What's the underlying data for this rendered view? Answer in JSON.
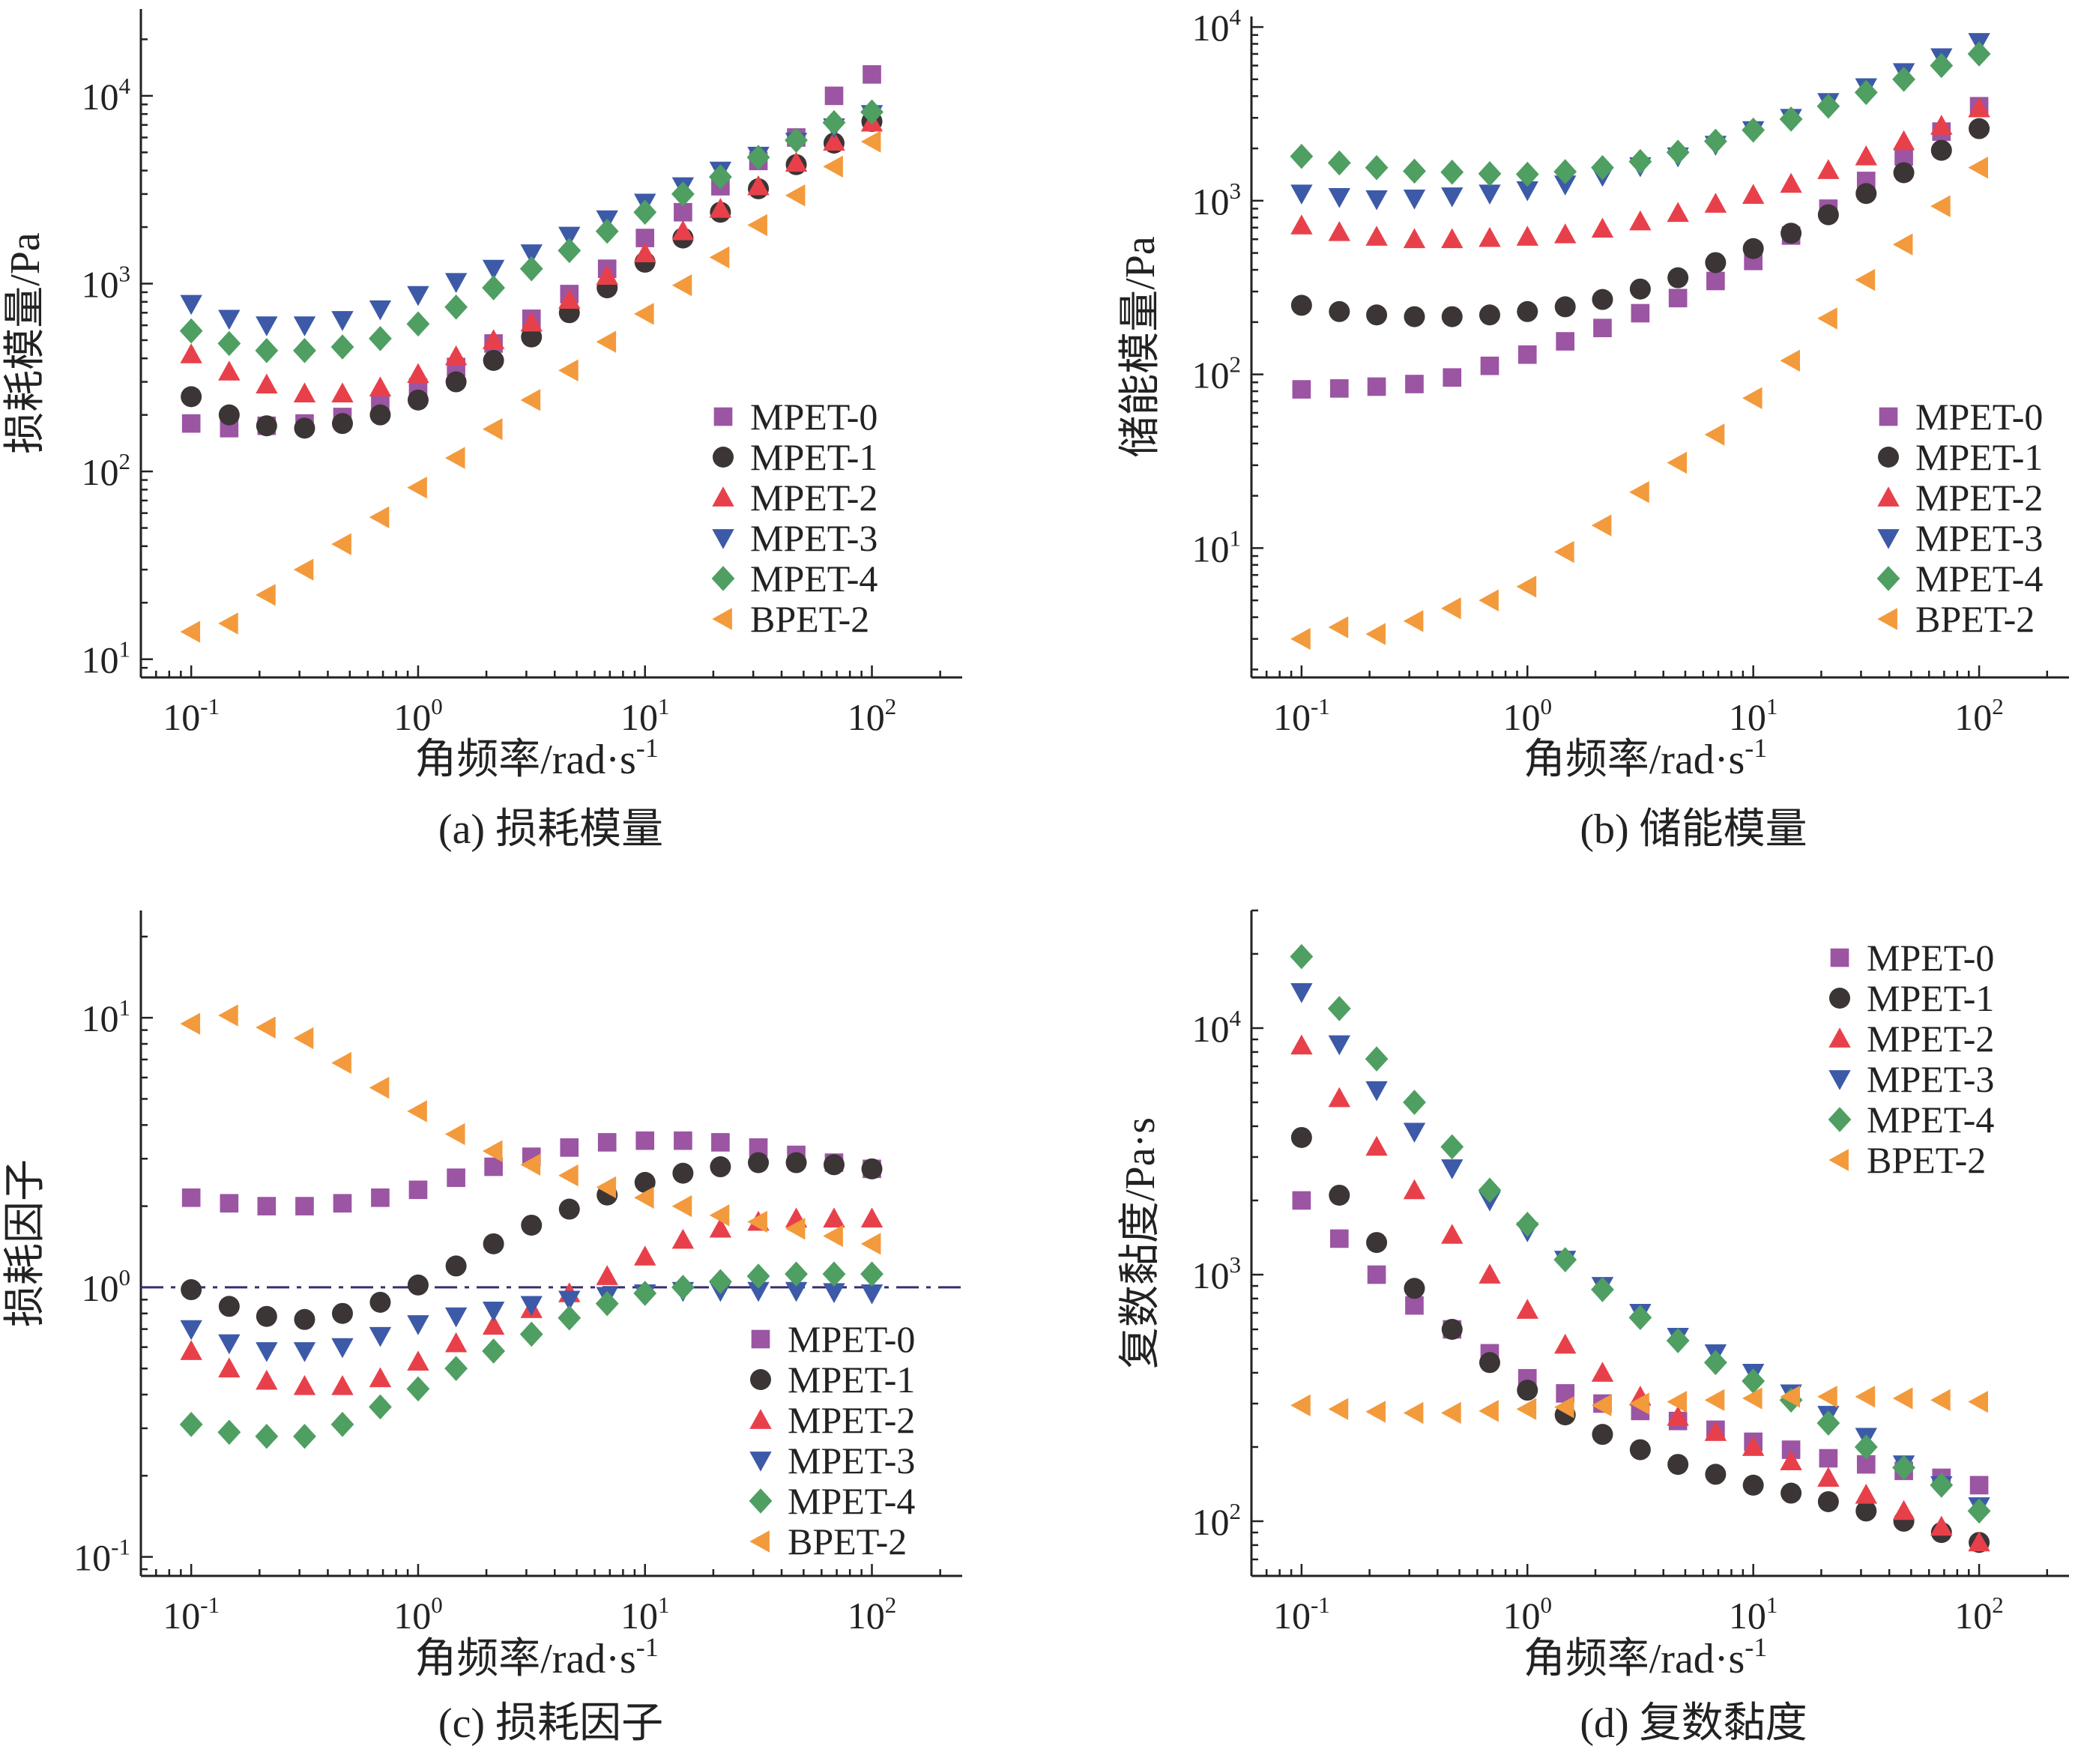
{
  "colors": {
    "MPET-0": "#9b55a3",
    "MPET-1": "#3b3535",
    "MPET-2": "#e8404a",
    "MPET-3": "#3d5aa8",
    "MPET-4": "#4f9e62",
    "BPET-2": "#f39a3c",
    "axis": "#222222",
    "refline": "#3a2d6e"
  },
  "marker_shapes": {
    "MPET-0": "square",
    "MPET-1": "circle",
    "MPET-2": "triangle-up",
    "MPET-3": "triangle-down",
    "MPET-4": "diamond",
    "BPET-2": "triangle-left"
  },
  "chart_data": [
    {
      "type": "scatter",
      "caption": "(a) 损耗模量",
      "xlabel": "角频率/rad·s",
      "xlabel_sup": "-1",
      "ylabel": "损耗模量/Pa",
      "xscale": "log",
      "yscale": "log",
      "xlim": [
        0.06,
        250
      ],
      "ylim": [
        8,
        29000
      ],
      "xticks": [
        0.1,
        1,
        10,
        100
      ],
      "xtick_labels": [
        {
          "base": "10",
          "exp": "-1"
        },
        {
          "base": "10",
          "exp": "0"
        },
        {
          "base": "10",
          "exp": "1"
        },
        {
          "base": "10",
          "exp": "2"
        }
      ],
      "yticks": [
        10,
        100,
        1000,
        10000
      ],
      "ytick_labels": [
        {
          "base": "10",
          "exp": "1"
        },
        {
          "base": "10",
          "exp": "2"
        },
        {
          "base": "10",
          "exp": "3"
        },
        {
          "base": "10",
          "exp": "4"
        }
      ],
      "legend": "lower-right",
      "x": [
        0.1,
        0.147,
        0.215,
        0.316,
        0.464,
        0.681,
        1,
        1.47,
        2.15,
        3.16,
        4.64,
        6.81,
        10,
        14.7,
        21.5,
        31.6,
        46.4,
        68.1,
        100
      ],
      "series": [
        {
          "name": "MPET-0",
          "values": [
            180,
            170,
            175,
            180,
            195,
            225,
            280,
            360,
            480,
            650,
            880,
            1200,
            1750,
            2400,
            3300,
            4500,
            6000,
            10000,
            13000
          ]
        },
        {
          "name": "MPET-1",
          "values": [
            250,
            200,
            175,
            170,
            180,
            200,
            240,
            300,
            390,
            520,
            700,
            950,
            1300,
            1750,
            2400,
            3200,
            4300,
            5600,
            7300
          ]
        },
        {
          "name": "MPET-2",
          "values": [
            420,
            340,
            290,
            260,
            260,
            280,
            330,
            410,
            500,
            620,
            820,
            1100,
            1450,
            1900,
            2500,
            3300,
            4400,
            5700,
            7200
          ]
        },
        {
          "name": "MPET-3",
          "values": [
            780,
            650,
            600,
            600,
            640,
            730,
            870,
            1020,
            1200,
            1450,
            1800,
            2200,
            2700,
            3300,
            4000,
            4800,
            5700,
            6800,
            8000
          ]
        },
        {
          "name": "MPET-4",
          "values": [
            560,
            480,
            440,
            440,
            460,
            510,
            610,
            750,
            950,
            1200,
            1500,
            1900,
            2400,
            3000,
            3700,
            4700,
            5800,
            7200,
            8200
          ]
        },
        {
          "name": "BPET-2",
          "values": [
            14,
            15.5,
            22,
            30,
            41,
            57,
            82,
            118,
            168,
            240,
            345,
            490,
            690,
            980,
            1380,
            2050,
            2950,
            4200,
            5700
          ]
        }
      ]
    },
    {
      "type": "scatter",
      "caption": "(b) 储能模量",
      "xlabel": "角频率/rad·s",
      "xlabel_sup": "-1",
      "ylabel": "储能模量/Pa",
      "xscale": "log",
      "yscale": "log",
      "xlim": [
        0.06,
        250
      ],
      "ylim": [
        1.8,
        11500
      ],
      "xticks": [
        0.1,
        1,
        10,
        100
      ],
      "xtick_labels": [
        {
          "base": "10",
          "exp": "-1"
        },
        {
          "base": "10",
          "exp": "0"
        },
        {
          "base": "10",
          "exp": "1"
        },
        {
          "base": "10",
          "exp": "2"
        }
      ],
      "yticks": [
        10,
        100,
        1000,
        10000
      ],
      "ytick_labels": [
        {
          "base": "10",
          "exp": "1"
        },
        {
          "base": "10",
          "exp": "2"
        },
        {
          "base": "10",
          "exp": "3"
        },
        {
          "base": "10",
          "exp": "4"
        }
      ],
      "legend": "lower-right",
      "x": [
        0.1,
        0.147,
        0.215,
        0.316,
        0.464,
        0.681,
        1,
        1.47,
        2.15,
        3.16,
        4.64,
        6.81,
        10,
        14.7,
        21.5,
        31.6,
        46.4,
        68.1,
        100
      ],
      "series": [
        {
          "name": "MPET-0",
          "values": [
            82,
            83,
            85,
            88,
            96,
            112,
            130,
            155,
            185,
            225,
            275,
            345,
            450,
            630,
            900,
            1300,
            1800,
            2500,
            3500
          ]
        },
        {
          "name": "MPET-1",
          "values": [
            250,
            230,
            220,
            215,
            215,
            220,
            230,
            245,
            270,
            310,
            360,
            440,
            530,
            650,
            830,
            1100,
            1450,
            1950,
            2600
          ]
        },
        {
          "name": "MPET-2",
          "values": [
            720,
            660,
            620,
            600,
            600,
            610,
            620,
            640,
            690,
            760,
            850,
            960,
            1080,
            1250,
            1500,
            1800,
            2200,
            2700,
            3400
          ]
        },
        {
          "name": "MPET-3",
          "values": [
            1100,
            1050,
            1020,
            1030,
            1060,
            1100,
            1150,
            1240,
            1390,
            1580,
            1800,
            2100,
            2550,
            3000,
            3700,
            4500,
            5500,
            6700,
            8200
          ]
        },
        {
          "name": "MPET-4",
          "values": [
            1800,
            1650,
            1550,
            1480,
            1460,
            1430,
            1420,
            1470,
            1550,
            1680,
            1900,
            2200,
            2550,
            2950,
            3500,
            4200,
            5000,
            6000,
            7000
          ]
        },
        {
          "name": "BPET-2",
          "values": [
            3,
            3.5,
            3.2,
            3.8,
            4.5,
            5,
            6,
            9.5,
            13.5,
            21,
            31,
            45,
            73,
            120,
            210,
            350,
            560,
            930,
            1550
          ]
        }
      ]
    },
    {
      "type": "scatter",
      "caption": "(c) 损耗因子",
      "xlabel": "角频率/rad·s",
      "xlabel_sup": "-1",
      "ylabel": "损耗因子",
      "xscale": "log",
      "yscale": "log",
      "xlim": [
        0.06,
        250
      ],
      "ylim": [
        0.085,
        25
      ],
      "xticks": [
        0.1,
        1,
        10,
        100
      ],
      "xtick_labels": [
        {
          "base": "10",
          "exp": "-1"
        },
        {
          "base": "10",
          "exp": "0"
        },
        {
          "base": "10",
          "exp": "1"
        },
        {
          "base": "10",
          "exp": "2"
        }
      ],
      "yticks": [
        0.1,
        1,
        10
      ],
      "ytick_labels": [
        {
          "base": "10",
          "exp": "-1"
        },
        {
          "base": "10",
          "exp": "0"
        },
        {
          "base": "10",
          "exp": "1"
        }
      ],
      "reference_line": 1,
      "legend": "lower-right",
      "x": [
        0.1,
        0.147,
        0.215,
        0.316,
        0.464,
        0.681,
        1,
        1.47,
        2.15,
        3.16,
        4.64,
        6.81,
        10,
        14.7,
        21.5,
        31.6,
        46.4,
        68.1,
        100
      ],
      "series": [
        {
          "name": "MPET-0",
          "values": [
            2.15,
            2.05,
            2.0,
            2.0,
            2.05,
            2.15,
            2.3,
            2.55,
            2.8,
            3.05,
            3.3,
            3.45,
            3.5,
            3.5,
            3.45,
            3.3,
            3.1,
            2.9,
            2.75
          ]
        },
        {
          "name": "MPET-1",
          "values": [
            0.98,
            0.85,
            0.78,
            0.76,
            0.8,
            0.88,
            1.02,
            1.2,
            1.45,
            1.7,
            1.95,
            2.2,
            2.45,
            2.65,
            2.8,
            2.9,
            2.9,
            2.85,
            2.75
          ]
        },
        {
          "name": "MPET-2",
          "values": [
            0.58,
            0.5,
            0.45,
            0.43,
            0.43,
            0.46,
            0.53,
            0.62,
            0.72,
            0.83,
            0.95,
            1.1,
            1.3,
            1.5,
            1.65,
            1.75,
            1.8,
            1.8,
            1.8
          ]
        },
        {
          "name": "MPET-3",
          "values": [
            0.7,
            0.62,
            0.58,
            0.58,
            0.6,
            0.66,
            0.73,
            0.78,
            0.82,
            0.86,
            0.9,
            0.93,
            0.95,
            0.97,
            0.97,
            0.97,
            0.97,
            0.96,
            0.95
          ]
        },
        {
          "name": "MPET-4",
          "values": [
            0.31,
            0.29,
            0.28,
            0.28,
            0.31,
            0.36,
            0.42,
            0.5,
            0.58,
            0.67,
            0.77,
            0.87,
            0.95,
            1.0,
            1.05,
            1.1,
            1.12,
            1.12,
            1.12
          ]
        },
        {
          "name": "BPET-2",
          "values": [
            9.5,
            10.2,
            9.2,
            8.4,
            6.8,
            5.5,
            4.5,
            3.7,
            3.2,
            2.85,
            2.6,
            2.35,
            2.15,
            2.0,
            1.85,
            1.75,
            1.65,
            1.55,
            1.45
          ]
        }
      ]
    },
    {
      "type": "scatter",
      "caption": "(d) 复数黏度",
      "xlabel": "角频率/rad·s",
      "xlabel_sup": "-1",
      "ylabel": "复数黏度/Pa·s",
      "xscale": "log",
      "yscale": "log",
      "xlim": [
        0.06,
        250
      ],
      "ylim": [
        60,
        30000
      ],
      "xticks": [
        0.1,
        1,
        10,
        100
      ],
      "xtick_labels": [
        {
          "base": "10",
          "exp": "-1"
        },
        {
          "base": "10",
          "exp": "0"
        },
        {
          "base": "10",
          "exp": "1"
        },
        {
          "base": "10",
          "exp": "2"
        }
      ],
      "yticks": [
        100,
        1000,
        10000
      ],
      "ytick_labels": [
        {
          "base": "10",
          "exp": "2"
        },
        {
          "base": "10",
          "exp": "3"
        },
        {
          "base": "10",
          "exp": "4"
        }
      ],
      "legend": "top-right",
      "x": [
        0.1,
        0.147,
        0.215,
        0.316,
        0.464,
        0.681,
        1,
        1.47,
        2.15,
        3.16,
        4.64,
        6.81,
        10,
        14.7,
        21.5,
        31.6,
        46.4,
        68.1,
        100
      ],
      "series": [
        {
          "name": "MPET-0",
          "values": [
            2000,
            1400,
            1000,
            750,
            600,
            480,
            380,
            330,
            300,
            280,
            255,
            235,
            210,
            195,
            180,
            170,
            160,
            150,
            140
          ]
        },
        {
          "name": "MPET-1",
          "values": [
            3600,
            2100,
            1350,
            880,
            600,
            440,
            340,
            270,
            225,
            195,
            170,
            155,
            140,
            130,
            120,
            110,
            100,
            90,
            82
          ]
        },
        {
          "name": "MPET-2",
          "values": [
            8500,
            5200,
            3300,
            2200,
            1450,
            1000,
            720,
            520,
            400,
            320,
            265,
            230,
            200,
            175,
            150,
            128,
            110,
            95,
            82
          ]
        },
        {
          "name": "MPET-3",
          "values": [
            14000,
            8600,
            5600,
            3800,
            2700,
            2000,
            1500,
            1150,
            900,
            700,
            560,
            480,
            400,
            330,
            270,
            220,
            170,
            140,
            115
          ]
        },
        {
          "name": "MPET-4",
          "values": [
            19500,
            12000,
            7500,
            5000,
            3300,
            2200,
            1600,
            1150,
            870,
            670,
            540,
            440,
            370,
            310,
            250,
            200,
            165,
            140,
            110
          ]
        },
        {
          "name": "BPET-2",
          "values": [
            295,
            285,
            278,
            275,
            275,
            280,
            285,
            290,
            295,
            300,
            305,
            310,
            315,
            320,
            320,
            320,
            315,
            310,
            305
          ]
        }
      ]
    }
  ]
}
